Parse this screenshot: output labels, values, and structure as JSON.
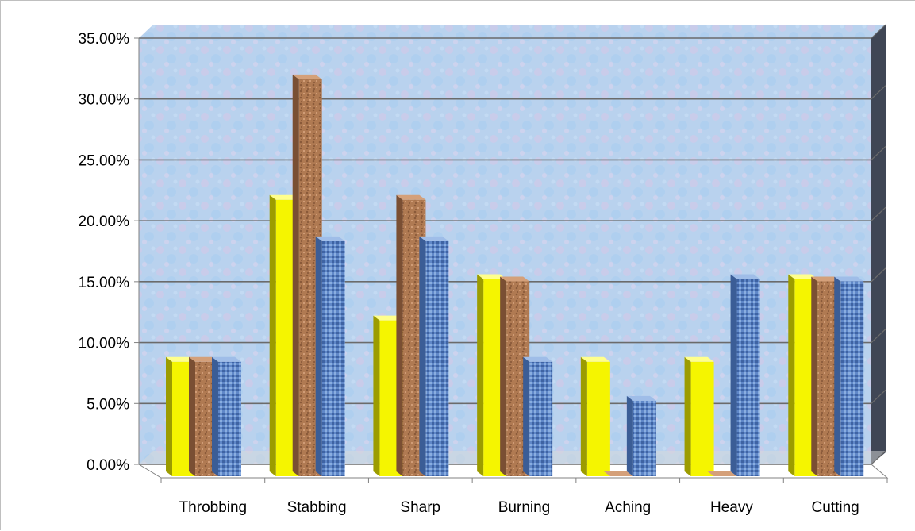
{
  "chart_data": {
    "type": "bar",
    "title": "",
    "xlabel": "",
    "ylabel": "",
    "categories": [
      "Throbbing",
      "Stabbing",
      "Sharp",
      "Burning",
      "Aching",
      "Heavy",
      "Cutting"
    ],
    "series": [
      {
        "values": [
          9.4,
          22.7,
          12.8,
          16.2,
          9.4,
          9.4,
          16.2
        ],
        "color": "#f5f500"
      },
      {
        "values": [
          9.4,
          32.6,
          22.7,
          16.0,
          0.0,
          0.0,
          16.0
        ],
        "color": "#b07a52"
      },
      {
        "values": [
          9.4,
          19.3,
          19.3,
          9.4,
          6.2,
          16.2,
          16.0
        ],
        "color": "#5f87c8"
      }
    ],
    "ylim": [
      0,
      35
    ],
    "yticks": [
      "0.00%",
      "5.00%",
      "10.00%",
      "15.00%",
      "20.00%",
      "25.00%",
      "30.00%",
      "35.00%"
    ],
    "grid": true,
    "legend": "none"
  }
}
